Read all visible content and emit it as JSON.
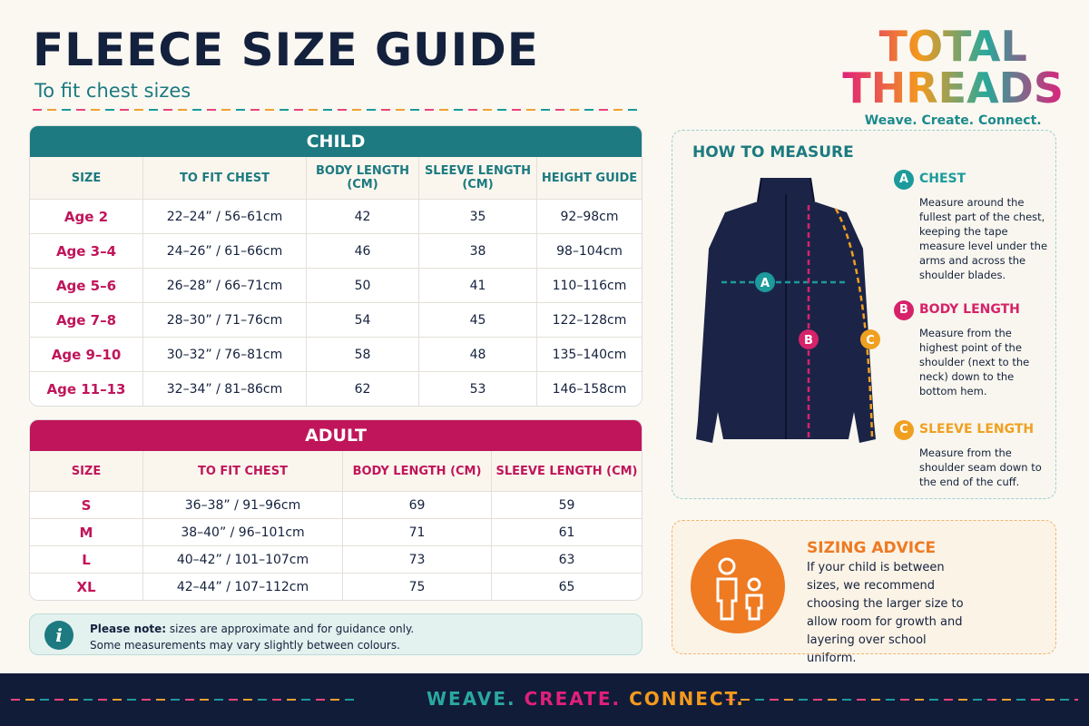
{
  "header": {
    "title": "FLEECE SIZE GUIDE",
    "subtitle": "To fit chest sizes"
  },
  "brand": {
    "line1": "TOTAL",
    "line2": "THREADS",
    "tagline": "Weave. Create. Connect."
  },
  "child_table": {
    "title": "CHILD",
    "headers": [
      "SIZE",
      "TO FIT CHEST",
      "BODY LENGTH (CM)",
      "SLEEVE LENGTH (CM)",
      "HEIGHT GUIDE"
    ],
    "rows": [
      [
        "Age 2",
        "22–24” / 56–61cm",
        "42",
        "35",
        "92–98cm"
      ],
      [
        "Age 3–4",
        "24–26” / 61–66cm",
        "46",
        "38",
        "98–104cm"
      ],
      [
        "Age 5–6",
        "26–28” / 66–71cm",
        "50",
        "41",
        "110–116cm"
      ],
      [
        "Age 7–8",
        "28–30” / 71–76cm",
        "54",
        "45",
        "122–128cm"
      ],
      [
        "Age 9–10",
        "30–32” / 76–81cm",
        "58",
        "48",
        "135–140cm"
      ],
      [
        "Age 11–13",
        "32–34” / 81–86cm",
        "62",
        "53",
        "146–158cm"
      ]
    ]
  },
  "adult_table": {
    "title": "ADULT",
    "headers": [
      "SIZE",
      "TO FIT CHEST",
      "BODY LENGTH (CM)",
      "SLEEVE LENGTH (CM)"
    ],
    "rows": [
      [
        "S",
        "36–38” / 91–96cm",
        "69",
        "59"
      ],
      [
        "M",
        "38–40” / 96–101cm",
        "71",
        "61"
      ],
      [
        "L",
        "40–42” / 101–107cm",
        "73",
        "63"
      ],
      [
        "XL",
        "42–44” / 107–112cm",
        "75",
        "65"
      ]
    ]
  },
  "note": {
    "icon": "i",
    "bold": "Please note:",
    "line1": " sizes are approximate and for guidance only.",
    "line2": "Some measurements may vary slightly between colours."
  },
  "how_to_measure": {
    "title": "HOW TO MEASURE",
    "items": [
      {
        "letter": "A",
        "title": "CHEST",
        "text": "Measure around the fullest part of the chest, keeping the tape measure level under the arms and across the shoulder blades."
      },
      {
        "letter": "B",
        "title": "BODY LENGTH",
        "text": "Measure from the highest point of the shoulder (next to the neck) down to the bottom hem."
      },
      {
        "letter": "C",
        "title": "SLEEVE LENGTH",
        "text": "Measure from the shoulder seam down to the end of the cuff."
      }
    ]
  },
  "sizing_advice": {
    "title": "SIZING ADVICE",
    "text": "If your child is between sizes, we recommend choosing the larger size to allow room for growth and layering over school uniform."
  },
  "footer": {
    "words": [
      "WEAVE.",
      "CREATE.",
      "CONNECT."
    ]
  }
}
